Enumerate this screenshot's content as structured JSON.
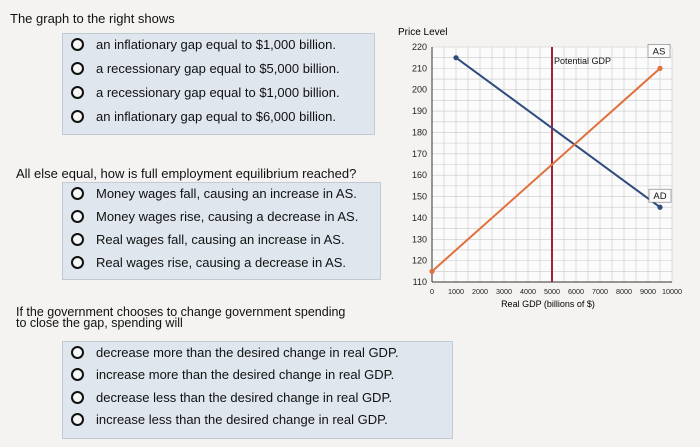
{
  "q1": {
    "prompt": "The graph to the right shows",
    "options": [
      "an inflationary gap equal to $1,000 billion.",
      "a recessionary gap equal to $5,000 billion.",
      "a recessionary gap equal to $1,000 billion.",
      "an inflationary gap equal to $6,000 billion."
    ]
  },
  "q2": {
    "prompt": "All else equal, how is full employment equilibrium reached?",
    "options": [
      "Money wages fall, causing an increase in AS.",
      "Money wages rise, causing a decrease in AS.",
      "Real wages fall, causing an increase in AS.",
      "Real wages rise, causing a decrease in AS."
    ]
  },
  "q3": {
    "prompt_line1": "If the government chooses to change government spending",
    "prompt_line2": "to close the gap, spending will",
    "options": [
      "decrease more than the desired change in real GDP.",
      "increase more than the desired change in real GDP.",
      "decrease less than the desired change in real GDP.",
      "increase less than the desired change in real GDP."
    ]
  },
  "chart_data": {
    "type": "line",
    "ylabel": "Price Level",
    "xlabel": "Real GDP (billions of $)",
    "xlim": [
      0,
      10000
    ],
    "ylim": [
      110,
      220
    ],
    "x_ticks": [
      0,
      1000,
      2000,
      3000,
      4000,
      5000,
      6000,
      7000,
      8000,
      9000,
      10000
    ],
    "x_tick_labels": [
      "0",
      "1000",
      "2000",
      "3000",
      "4000",
      "5000",
      "6000",
      "7000",
      "8000",
      "9000",
      "10000"
    ],
    "y_ticks": [
      110,
      120,
      130,
      140,
      150,
      160,
      170,
      180,
      190,
      200,
      210,
      220
    ],
    "grid": true,
    "series": [
      {
        "name": "AD",
        "color": "#2f4b7c",
        "points": [
          [
            1000,
            215
          ],
          [
            9500,
            145
          ]
        ]
      },
      {
        "name": "AS",
        "color": "#e1703c",
        "points": [
          [
            0,
            115
          ],
          [
            9500,
            210
          ]
        ]
      }
    ],
    "vertical_line": {
      "name": "Potential GDP",
      "x": 5000,
      "color": "#a0223a"
    }
  }
}
